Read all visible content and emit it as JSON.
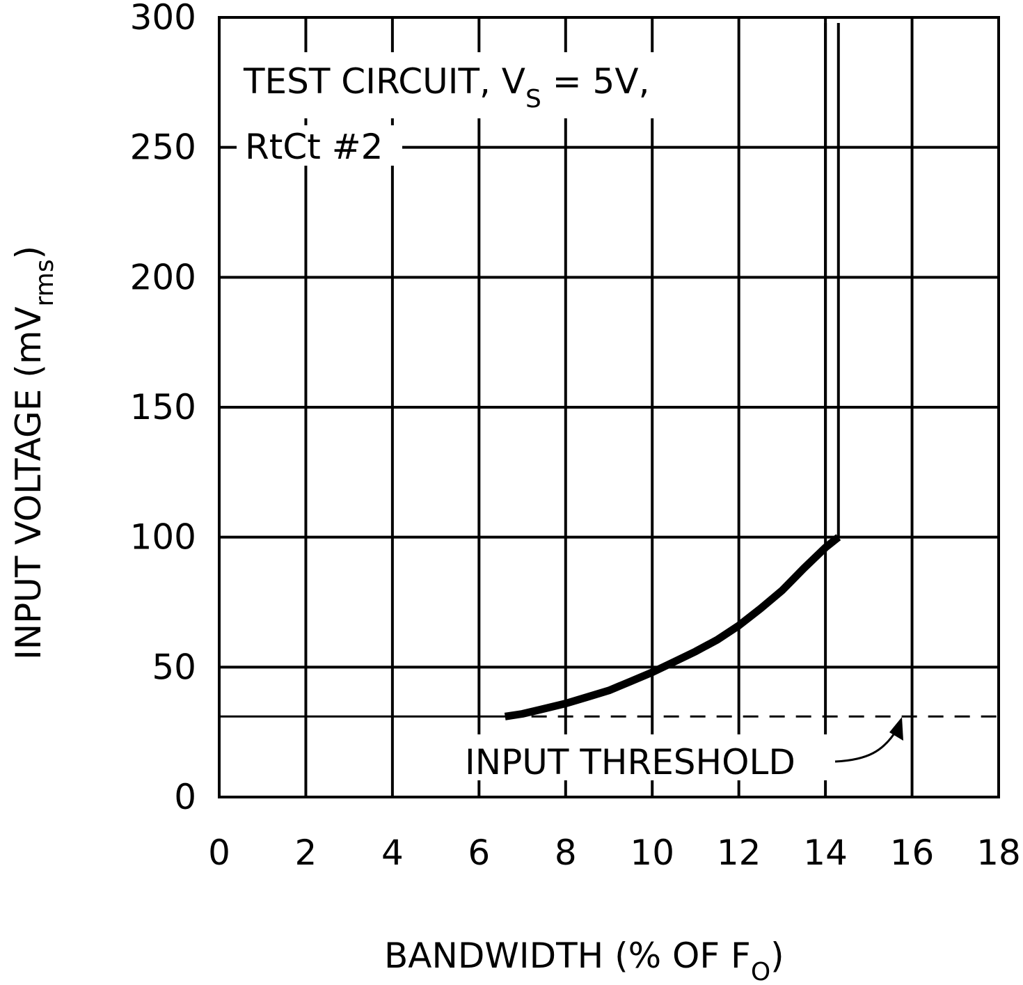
{
  "chart_data": {
    "type": "line",
    "xlabel": {
      "main": "BANDWIDTH (% OF F",
      "sub": "O",
      "close": ")"
    },
    "ylabel": {
      "main": "INPUT VOLTAGE (mV",
      "sub": "rms",
      "close": ")"
    },
    "xlim": [
      0,
      18
    ],
    "ylim": [
      0,
      300
    ],
    "xticks": [
      "0",
      "2",
      "4",
      "6",
      "8",
      "10",
      "12",
      "14",
      "16",
      "18"
    ],
    "yticks": [
      "0",
      "50",
      "100",
      "150",
      "200",
      "250",
      "300"
    ],
    "grid": true,
    "annotation_test": {
      "line1_prefix": "TEST CIRCUIT, V",
      "line1_sub": "S",
      "line1_suffix": " = 5V,",
      "line2": "RtCt #2"
    },
    "annotation_threshold": "INPUT THRESHOLD",
    "threshold_value": 31,
    "series": [
      {
        "points": [
          [
            6.6,
            31
          ],
          [
            7.0,
            32
          ],
          [
            7.5,
            34
          ],
          [
            8.0,
            36
          ],
          [
            8.5,
            38.5
          ],
          [
            9.0,
            41
          ],
          [
            9.5,
            44.5
          ],
          [
            10.0,
            48
          ],
          [
            10.5,
            52
          ],
          [
            11.0,
            56
          ],
          [
            11.5,
            60.5
          ],
          [
            12.0,
            66
          ],
          [
            12.5,
            72.5
          ],
          [
            13.0,
            79.5
          ],
          [
            13.5,
            88
          ],
          [
            14.0,
            96
          ],
          [
            14.3,
            100
          ]
        ]
      }
    ],
    "bandwidth_limit_x": [
      14.0,
      14.3
    ],
    "colors": {
      "line": "#000000",
      "background": "#ffffff"
    }
  }
}
